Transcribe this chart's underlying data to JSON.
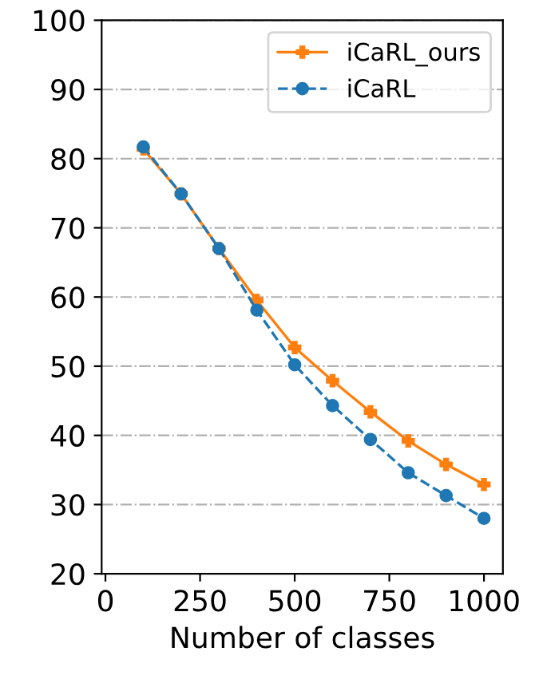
{
  "chart_data": {
    "type": "line",
    "xlabel": "Number of classes",
    "x": [
      100,
      200,
      300,
      400,
      500,
      600,
      700,
      800,
      900,
      1000
    ],
    "series": [
      {
        "name": "iCaRL_ours",
        "color": "#ff7f0e",
        "marker": "cross",
        "line_style": "solid",
        "values": [
          81.4,
          74.9,
          67,
          59.5,
          52.7,
          47.9,
          43.4,
          39.2,
          35.8,
          32.9
        ]
      },
      {
        "name": "iCaRL",
        "color": "#1f77b4",
        "marker": "circle",
        "line_style": "dashed",
        "values": [
          81.7,
          74.9,
          67,
          58.1,
          50.2,
          44.3,
          39.4,
          34.6,
          31.3,
          28.0
        ]
      }
    ],
    "xlim": [
      -10,
      1050
    ],
    "xticks": [
      0,
      250,
      500,
      750,
      1000
    ],
    "ylim": [
      20,
      100
    ],
    "yticks": [
      20,
      30,
      40,
      50,
      60,
      70,
      80,
      90,
      100
    ],
    "grid": "y",
    "legend": "top right"
  }
}
